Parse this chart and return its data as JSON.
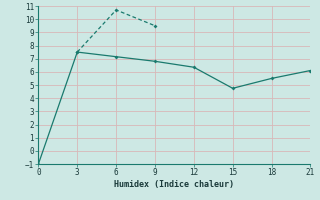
{
  "line1_x": [
    3,
    6,
    9
  ],
  "line1_y": [
    7.5,
    10.7,
    9.5
  ],
  "line2_x": [
    0,
    3,
    6,
    9,
    12,
    15,
    18,
    21
  ],
  "line2_y": [
    -1.0,
    7.5,
    7.15,
    6.8,
    6.35,
    4.75,
    5.5,
    6.1
  ],
  "color": "#1a7a6e",
  "bg_color": "#cde8e4",
  "grid_color": "#b0d4cc",
  "xlabel": "Humidex (Indice chaleur)",
  "xlim": [
    0,
    21
  ],
  "ylim": [
    -1,
    11
  ],
  "xticks": [
    0,
    3,
    6,
    9,
    12,
    15,
    18,
    21
  ],
  "yticks": [
    -1,
    0,
    1,
    2,
    3,
    4,
    5,
    6,
    7,
    8,
    9,
    10,
    11
  ]
}
